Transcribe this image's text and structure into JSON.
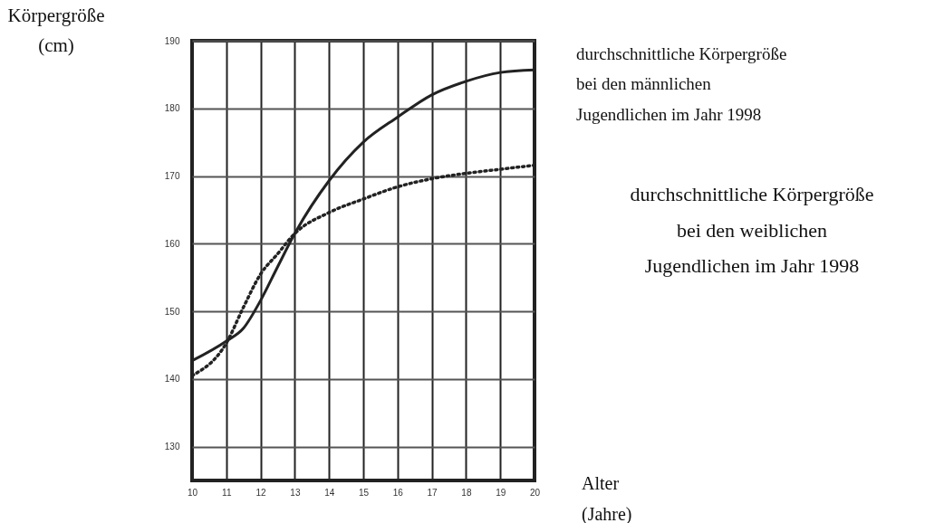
{
  "chart_data": {
    "type": "line",
    "xlabel": "Alter\n(Jahre)",
    "ylabel": "Körpergröße\n(cm)",
    "xlim": [
      10,
      20
    ],
    "ylim": [
      125,
      190
    ],
    "xticks": [
      10,
      11,
      12,
      13,
      14,
      15,
      16,
      17,
      18,
      19,
      20
    ],
    "yticks": [
      130,
      140,
      150,
      160,
      170,
      180,
      190
    ],
    "grid": true,
    "marker": "none",
    "series": [
      {
        "name": "durchschnittliche Körpergröße\nbei den männlichen\nJugendlichen im Jahr 1998",
        "color": "#222222",
        "line_style": "solid",
        "x": [
          10,
          11,
          11.5,
          12,
          12.5,
          13,
          14,
          15,
          16,
          17,
          18,
          19,
          20
        ],
        "values": [
          142.7,
          145.6,
          147.5,
          151.6,
          156.6,
          161.5,
          169.3,
          175,
          178.7,
          182,
          184,
          185.3,
          185.7
        ]
      },
      {
        "name": "durchschnittliche Körpergröße\nbei den weiblichen\nJugendlichen im Jahr 1998",
        "color": "#222222",
        "line_style": "dotted",
        "x": [
          10,
          11,
          11.5,
          12,
          12.5,
          13,
          14,
          15,
          16,
          17,
          18,
          19,
          20
        ],
        "values": [
          140.5,
          145.3,
          150.6,
          155.5,
          158.5,
          161.5,
          164.6,
          166.6,
          168.4,
          169.6,
          170.4,
          171,
          171.6
        ]
      }
    ]
  }
}
